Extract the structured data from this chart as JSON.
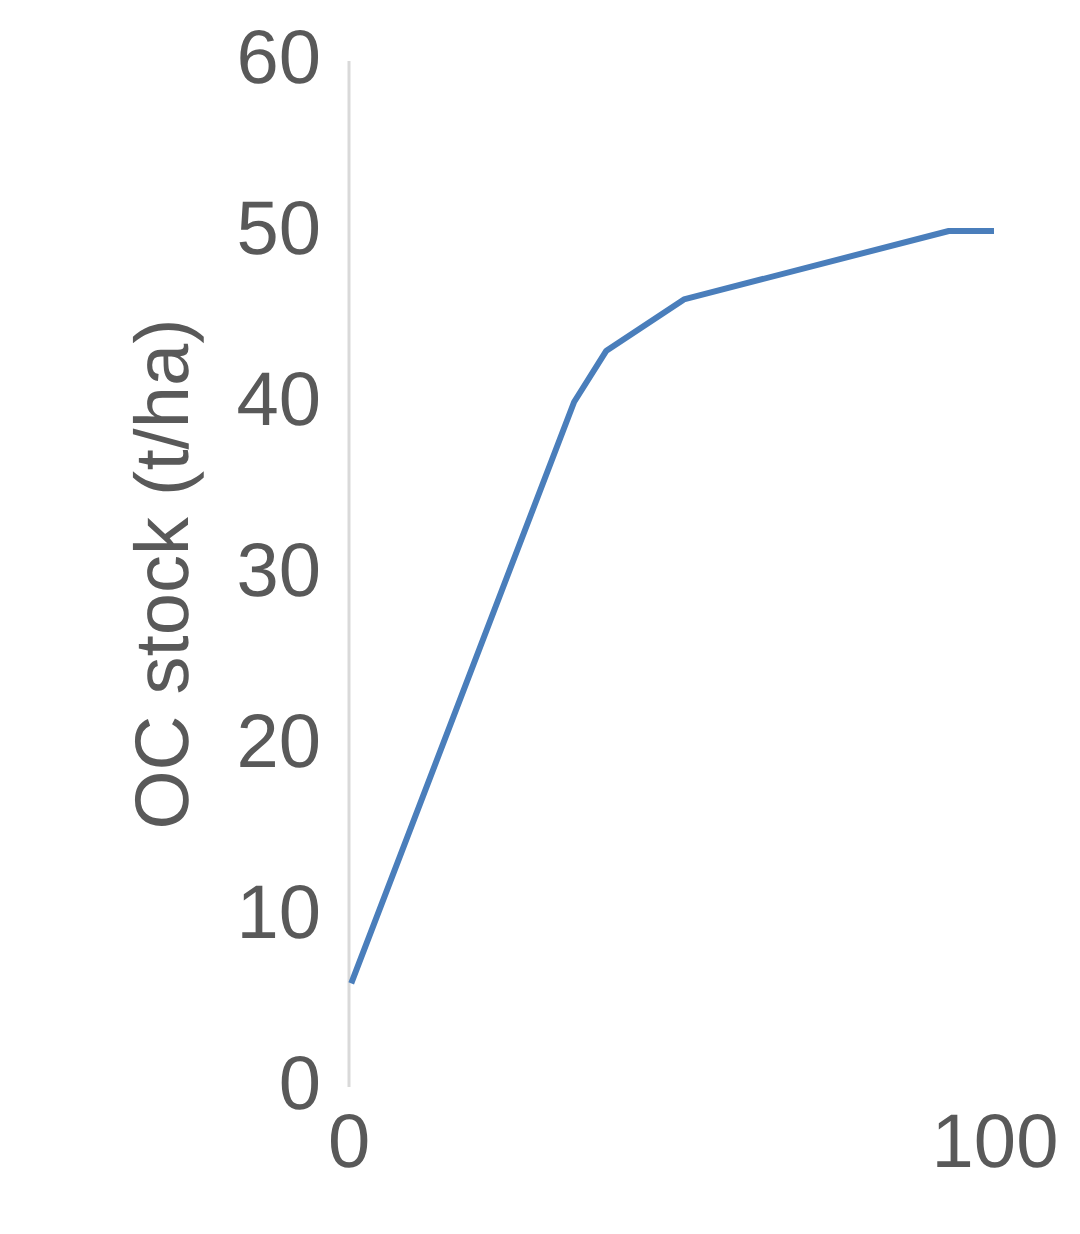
{
  "chart_data": {
    "type": "line",
    "ylabel": "OC stock (t/ha)",
    "x": [
      0.5,
      35,
      40,
      52,
      93,
      100
    ],
    "series": [
      {
        "color": "#4a7ebb",
        "values": [
          6,
          40,
          43,
          46,
          50,
          50
        ]
      }
    ],
    "xlim": [
      0,
      100
    ],
    "xticks": [
      0,
      100
    ],
    "ylim": [
      0,
      60
    ],
    "yticks": [
      0,
      10,
      20,
      30,
      40,
      50,
      60
    ],
    "grid": false,
    "legend": false,
    "marker": "none",
    "line_style": "solid"
  }
}
